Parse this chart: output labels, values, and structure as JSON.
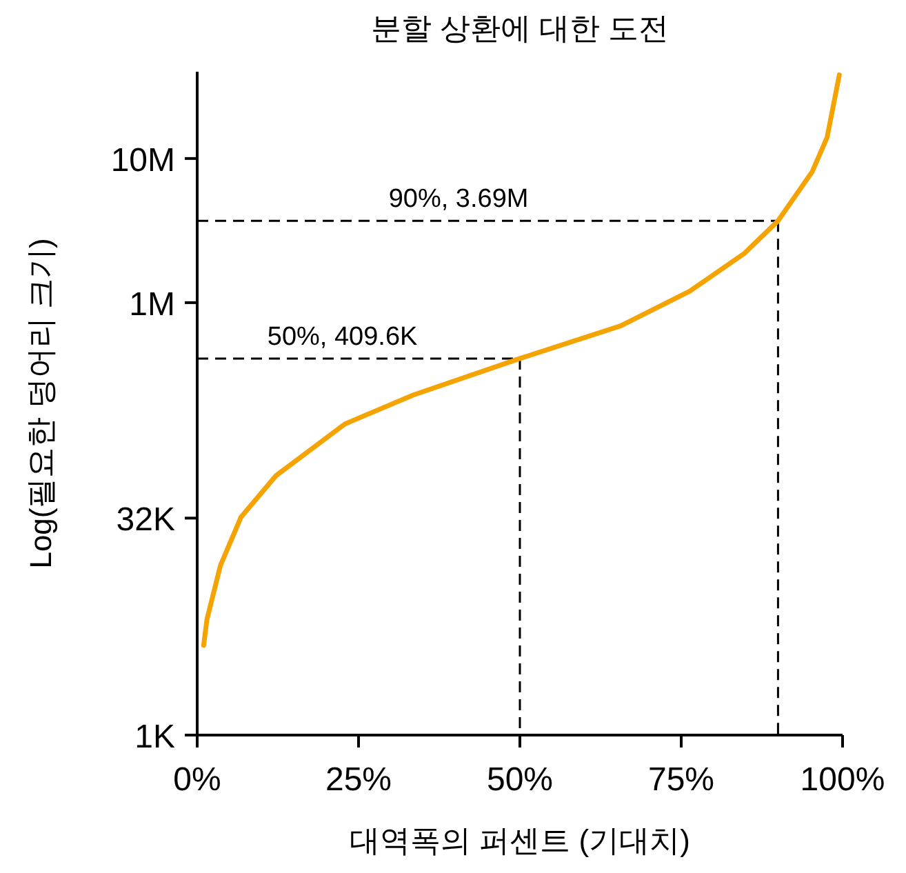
{
  "chart_data": {
    "type": "line",
    "title": "분할 상환에 대한 도전",
    "xlabel": "대역폭의 퍼센트 (기대치)",
    "ylabel": "Log(필요한 덩어리 크기)",
    "log": "y",
    "grid": false,
    "marker": "none",
    "line_style": "solid",
    "x": [
      1,
      1.5,
      3.6,
      6.8,
      12.2,
      22.9,
      33.5,
      50,
      65.6,
      76.3,
      84.8,
      90,
      95.3,
      97.6,
      99.5
    ],
    "series": [
      {
        "color": "#f5a300",
        "values": [
          4200,
          6300,
          15000,
          32600,
          63000,
          144000,
          229000,
          409600,
          690000,
          1200000,
          2200000,
          3690000,
          8100000,
          14000000,
          38000000
        ]
      }
    ],
    "xlim": [
      0,
      100
    ],
    "ylim": [
      1000,
      40000000
    ],
    "xticks": [
      {
        "value": 0,
        "label": "0%"
      },
      {
        "value": 25,
        "label": "25%"
      },
      {
        "value": 50,
        "label": "50%"
      },
      {
        "value": 75,
        "label": "75%"
      },
      {
        "value": 100,
        "label": "100%"
      }
    ],
    "yticks": [
      {
        "value": 1000,
        "label": "1K"
      },
      {
        "value": 32000,
        "label": "32K"
      },
      {
        "value": 1000000,
        "label": "1M"
      },
      {
        "value": 10000000,
        "label": "10M"
      }
    ],
    "ref_lines": [
      {
        "axis": "y",
        "value": 409600,
        "label": "50%, 409.6K",
        "color": "#000000",
        "line_style": "dashed"
      },
      {
        "axis": "x",
        "value": 50,
        "color": "#000000",
        "line_style": "dashed"
      },
      {
        "axis": "y",
        "value": 3690000,
        "label": "90%, 3.69M",
        "color": "#000000",
        "line_style": "dashed"
      },
      {
        "axis": "x",
        "value": 90,
        "color": "#000000",
        "line_style": "dashed"
      }
    ]
  }
}
